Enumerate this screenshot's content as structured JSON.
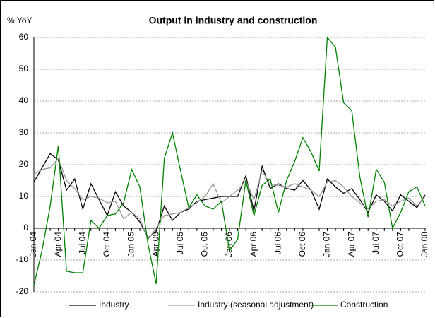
{
  "chart_data": {
    "type": "line",
    "title": "Output in industry and construction",
    "ylabel": "% YoY",
    "categories": [
      "Jan 04",
      null,
      null,
      "Apr 04",
      null,
      null,
      "Jul 04",
      null,
      null,
      "Oct 04",
      null,
      null,
      "Jan 05",
      null,
      null,
      "Apr 05",
      null,
      null,
      "Jul 05",
      null,
      null,
      "Oct 05",
      null,
      null,
      "Jan 06",
      null,
      null,
      "Apr 06",
      null,
      null,
      "Jul 06",
      null,
      null,
      "Oct 06",
      null,
      null,
      "Jan 07",
      null,
      null,
      "Apr 07",
      null,
      null,
      "Jul 07",
      null,
      null,
      "Oct 07",
      null,
      null,
      "Jan 08"
    ],
    "series": [
      {
        "name": "Industry",
        "color": "#000000",
        "values": [
          14.5,
          19,
          23.5,
          21.5,
          12,
          15.5,
          6,
          14,
          9,
          4,
          11.5,
          7,
          5,
          2,
          -3,
          -1,
          7,
          2.5,
          5,
          6,
          8.5,
          9,
          9.5,
          10,
          10,
          10,
          16.5,
          5.5,
          19.5,
          12.5,
          14,
          12.5,
          12,
          15,
          12,
          6,
          15.5,
          13,
          11,
          12.5,
          9,
          5,
          10.5,
          8.5,
          5.5,
          10.5,
          8.5,
          6.5,
          10.5
        ]
      },
      {
        "name": "Industry (seasonal adjustment)",
        "color": "#999999",
        "values": [
          17,
          18.5,
          19,
          22,
          15,
          12.5,
          9,
          10,
          9.5,
          8,
          8.5,
          3,
          5,
          3,
          -3.5,
          0,
          4,
          4.5,
          5,
          6.5,
          8,
          10,
          14,
          8,
          10,
          12,
          15,
          9,
          18,
          14,
          13.5,
          13,
          14,
          13,
          12,
          10,
          14.5,
          15,
          13,
          10,
          8,
          6,
          8.5,
          9,
          7,
          8.5,
          9.5,
          7,
          10
        ]
      },
      {
        "name": "Construction",
        "color": "#008000",
        "values": [
          -18,
          -7,
          7,
          26,
          -13.5,
          -14,
          -14,
          2.5,
          0,
          4,
          4.5,
          8,
          18.5,
          13,
          -5,
          -17.5,
          22,
          30,
          18,
          6.5,
          10.5,
          7,
          6,
          8.5,
          -7,
          -3.5,
          15,
          4,
          13.5,
          15.5,
          5,
          15,
          21,
          28.5,
          24,
          18,
          60,
          57,
          39.5,
          37,
          16,
          3.5,
          18.5,
          14.5,
          0,
          5,
          11.5,
          13,
          7
        ]
      }
    ],
    "ylim": [
      -20,
      60
    ],
    "yticks": [
      -20,
      -10,
      0,
      10,
      20,
      30,
      40,
      50,
      60
    ],
    "grid": true,
    "legend": "bottom"
  }
}
